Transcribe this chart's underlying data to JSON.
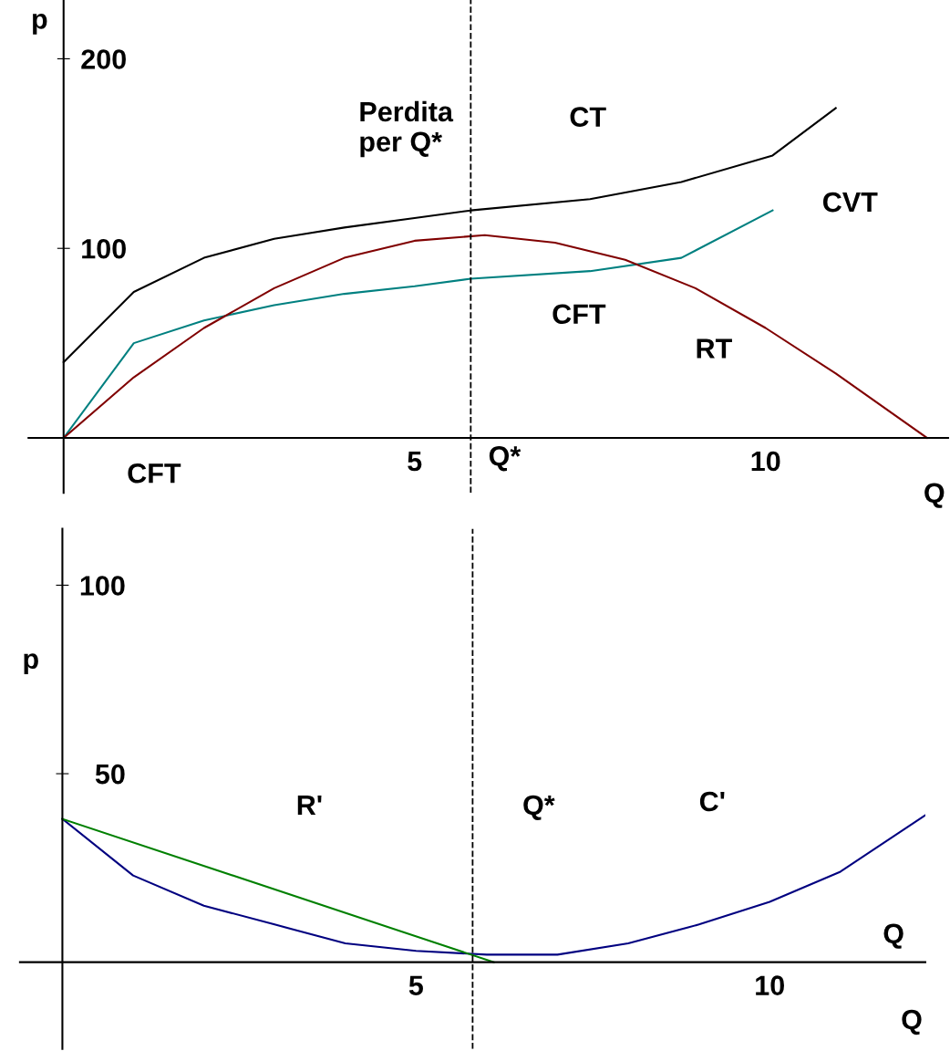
{
  "chart_data": [
    {
      "type": "line",
      "xlabel": "Q",
      "ylabel": "p",
      "xlim": [
        -0.5,
        12.6
      ],
      "ylim": [
        -29,
        231
      ],
      "xticks": [
        5,
        10
      ],
      "yticks": [
        100,
        200
      ],
      "grid": false,
      "marker": "none",
      "line_style": "solid",
      "series": [
        {
          "color": "#000000",
          "x": [
            0,
            1,
            2,
            3,
            4,
            5,
            5.8,
            7.5,
            8.8,
            10.1,
            11
          ],
          "values": [
            40,
            77,
            95,
            105,
            111,
            116,
            120,
            126,
            135,
            149,
            174
          ]
        },
        {
          "color": "#008080",
          "x": [
            0,
            1,
            2,
            3,
            4,
            5,
            5.8,
            7.5,
            8.8,
            10.1
          ],
          "values": [
            0,
            50,
            62,
            70,
            76,
            80,
            84,
            88,
            95,
            120
          ]
        },
        {
          "color": "#800000",
          "x": [
            0,
            1,
            2,
            3,
            4,
            5,
            6,
            7,
            8,
            9,
            10,
            11,
            12.3
          ],
          "values": [
            0,
            32,
            58,
            79,
            95,
            104,
            107,
            103,
            94,
            79,
            58,
            34,
            0
          ]
        }
      ],
      "ref_lines": [
        {
          "axis": "x",
          "value": 5.8,
          "label": "Q*",
          "line_style": "dashed",
          "color": "#000000"
        }
      ],
      "annotations": [
        "CT",
        "Perdita\nper Q*",
        "CVT",
        "CFT",
        "RT",
        "CFT"
      ]
    },
    {
      "type": "line",
      "xlabel": "Q",
      "ylabel": "p",
      "xlim": [
        -0.6,
        12.2
      ],
      "ylim": [
        -23,
        115
      ],
      "xticks": [
        5,
        10
      ],
      "yticks": [
        50,
        100
      ],
      "grid": false,
      "marker": "none",
      "line_style": "solid",
      "series": [
        {
          "color": "#000080",
          "x": [
            0,
            1,
            2,
            3,
            4,
            5,
            6,
            7,
            8,
            9,
            10,
            11,
            12.2
          ],
          "values": [
            38,
            23,
            15,
            10,
            5,
            3,
            2,
            2,
            5,
            10,
            16,
            24,
            39
          ]
        },
        {
          "color": "#008000",
          "x": [
            0,
            6.1
          ],
          "values": [
            38,
            0
          ]
        }
      ],
      "ref_lines": [
        {
          "axis": "x",
          "value": 5.8,
          "line_style": "dashed",
          "color": "#000000"
        }
      ],
      "annotations": [
        "R'",
        "C'",
        "Q*",
        "Q"
      ]
    }
  ]
}
